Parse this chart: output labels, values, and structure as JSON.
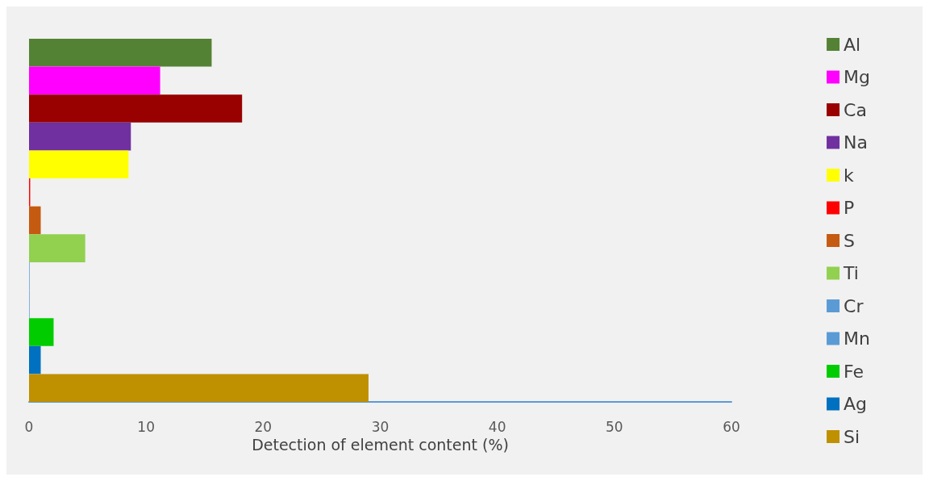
{
  "chart_data": {
    "type": "bar",
    "orientation": "horizontal",
    "xlabel": "Detection of element content (%)",
    "categories": [
      null
    ],
    "xlim": [
      0,
      60
    ],
    "xticks": [
      0,
      10,
      20,
      30,
      40,
      50,
      60
    ],
    "grid": false,
    "legend": "right",
    "series": [
      {
        "name": "Al",
        "color": "#548235",
        "values": [
          15.6
        ]
      },
      {
        "name": "Mg",
        "color": "#ff00ff",
        "values": [
          11.2
        ]
      },
      {
        "name": "Ca",
        "color": "#990000",
        "values": [
          18.2
        ]
      },
      {
        "name": "Na",
        "color": "#7030a0",
        "values": [
          8.7
        ]
      },
      {
        "name": "k",
        "color": "#ffff00",
        "values": [
          8.5
        ]
      },
      {
        "name": "P",
        "color": "#ff0000",
        "values": [
          0.1
        ]
      },
      {
        "name": "S",
        "color": "#c55a11",
        "values": [
          1.0
        ]
      },
      {
        "name": "Ti",
        "color": "#92d050",
        "values": [
          4.8
        ]
      },
      {
        "name": "Cr",
        "color": "#5b9bd5",
        "values": [
          0.05
        ]
      },
      {
        "name": "Mn",
        "color": "#5b9bd5",
        "values": [
          0.05
        ]
      },
      {
        "name": "Fe",
        "color": "#00cc00",
        "values": [
          2.1
        ]
      },
      {
        "name": "Ag",
        "color": "#0070c0",
        "values": [
          1.0
        ]
      },
      {
        "name": "Si",
        "color": "#bf9000",
        "values": [
          29.0
        ]
      }
    ]
  }
}
